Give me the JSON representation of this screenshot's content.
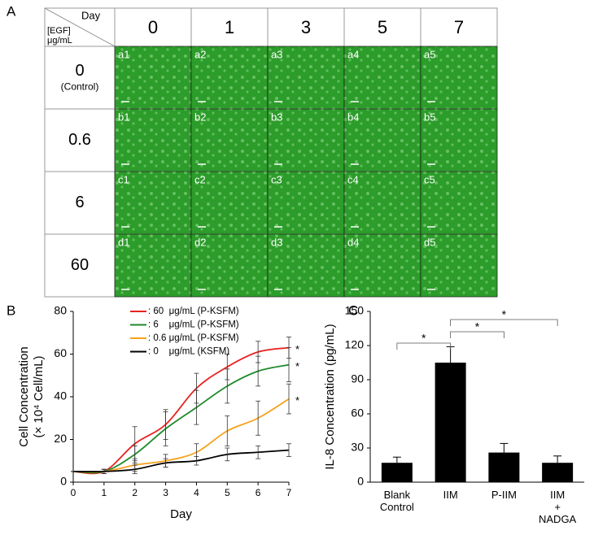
{
  "panel_labels": [
    "A",
    "B",
    "C"
  ],
  "panel_a": {
    "col_header": "Day",
    "row_header": [
      "[EGF]",
      "μg/mL"
    ],
    "days": [
      "0",
      "1",
      "3",
      "5",
      "7"
    ],
    "concentrations": [
      "0",
      "0.6",
      "6",
      "60"
    ],
    "control_note": "(Control)",
    "cells": [
      [
        "a1",
        "a2",
        "a3",
        "a4",
        "a5"
      ],
      [
        "b1",
        "b2",
        "b3",
        "b4",
        "b5"
      ],
      [
        "c1",
        "c2",
        "c3",
        "c4",
        "c5"
      ],
      [
        "d1",
        "d2",
        "d3",
        "d4",
        "d5"
      ]
    ]
  },
  "chart_data": [
    {
      "type": "line",
      "x_label": "Day",
      "y_label": [
        "Cell Concentration",
        "(× 10⁴ Cell/mL)"
      ],
      "x": [
        0,
        1,
        2,
        3,
        4,
        5,
        6,
        7
      ],
      "xlim": [
        0,
        7
      ],
      "xticks": [
        0,
        1,
        2,
        3,
        4,
        5,
        6,
        7
      ],
      "ylim": [
        0,
        80
      ],
      "yticks": [
        0,
        20,
        40,
        60,
        80
      ],
      "series": [
        {
          "name": ": 60  μg/mL (P-KSFM)",
          "color": "#e8231f",
          "values": [
            5,
            5,
            18,
            27,
            44,
            54,
            61,
            63
          ],
          "errors": [
            0,
            1,
            8,
            7,
            7,
            6,
            5,
            5
          ],
          "significance": "*"
        },
        {
          "name": ": 6    μg/mL (P-KSFM)",
          "color": "#1f8a2a",
          "values": [
            5,
            5,
            13,
            25,
            35,
            45,
            52,
            55
          ],
          "errors": [
            0,
            1,
            4,
            8,
            8,
            8,
            7,
            8
          ],
          "significance": "*"
        },
        {
          "name": ": 0.6 μg/mL (P-KSFM)",
          "color": "#f5a21b",
          "values": [
            5,
            5,
            8,
            10,
            14,
            24,
            30,
            39
          ],
          "errors": [
            0,
            1,
            3,
            3,
            4,
            7,
            8,
            7
          ],
          "significance": "*"
        },
        {
          "name": ": 0    μg/mL (KSFM)",
          "color": "#000000",
          "values": [
            5,
            5,
            6,
            9,
            10,
            13,
            14,
            15
          ],
          "errors": [
            0,
            1,
            2,
            2,
            2,
            3,
            3,
            3
          ]
        }
      ]
    },
    {
      "type": "bar",
      "y_label": "IL-8 Concentration (pg/mL)",
      "categories": [
        "Blank\nControl",
        "IIM",
        "P-IIM",
        "IIM\n+\nNADGA"
      ],
      "values": [
        17,
        105,
        26,
        17
      ],
      "errors": [
        5,
        14,
        8,
        6
      ],
      "color": "#000000",
      "ylim": [
        0,
        150
      ],
      "yticks": [
        0,
        30,
        60,
        90,
        120,
        150
      ],
      "comparisons": [
        {
          "pair": [
            0,
            1
          ],
          "label": "*"
        },
        {
          "pair": [
            1,
            2
          ],
          "label": "*"
        },
        {
          "pair": [
            1,
            3
          ],
          "label": "*"
        }
      ]
    }
  ]
}
